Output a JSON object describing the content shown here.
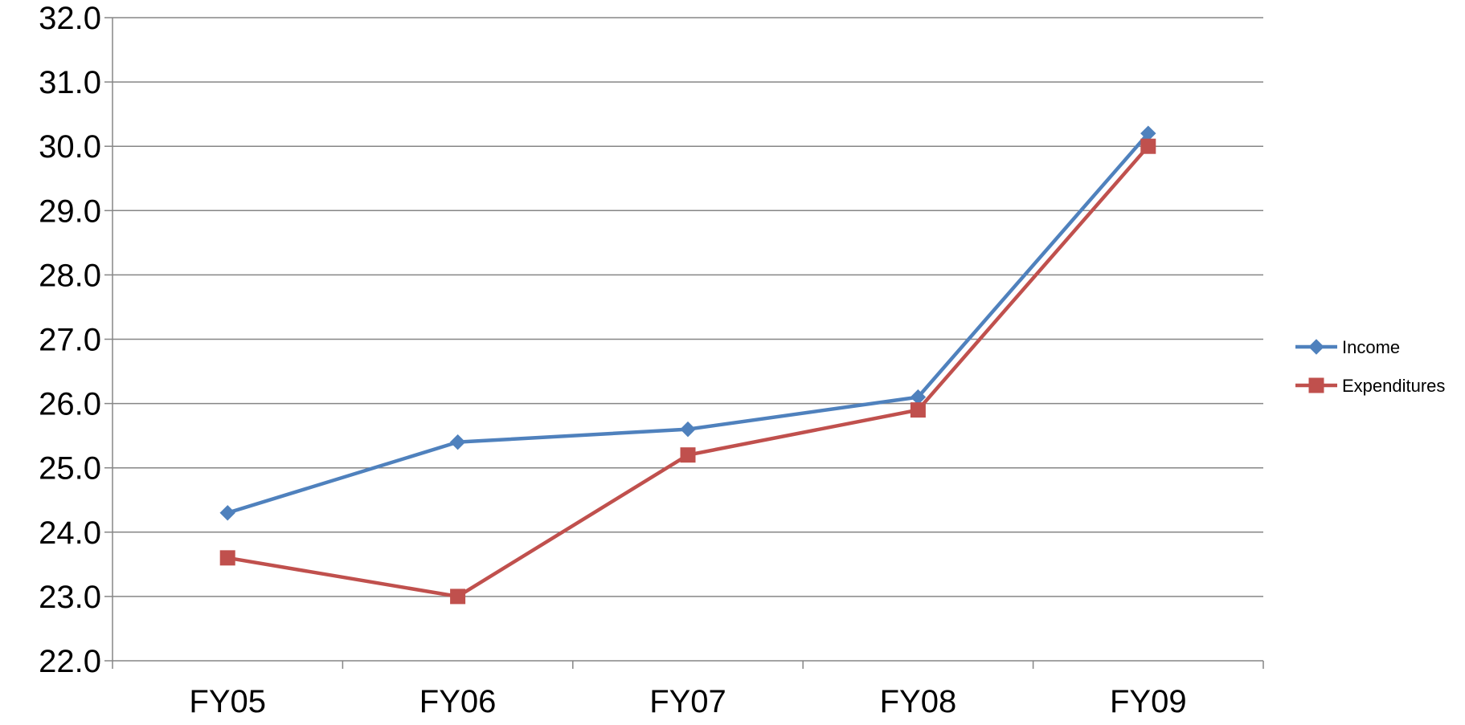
{
  "chart_data": {
    "type": "line",
    "title": "",
    "xlabel": "",
    "ylabel": "",
    "categories": [
      "FY05",
      "FY06",
      "FY07",
      "FY08",
      "FY09"
    ],
    "ylim": [
      22.0,
      32.0
    ],
    "ytick_step": 1.0,
    "ytick_decimals": 1,
    "grid": true,
    "legend_position": "right",
    "series": [
      {
        "name": "Income",
        "values": [
          24.3,
          25.4,
          25.6,
          26.1,
          30.2
        ],
        "color": "#4F81BD",
        "marker": "diamond"
      },
      {
        "name": "Expenditures",
        "values": [
          23.6,
          23.0,
          25.2,
          25.9,
          30.0
        ],
        "color": "#C0504D",
        "marker": "square"
      }
    ]
  }
}
